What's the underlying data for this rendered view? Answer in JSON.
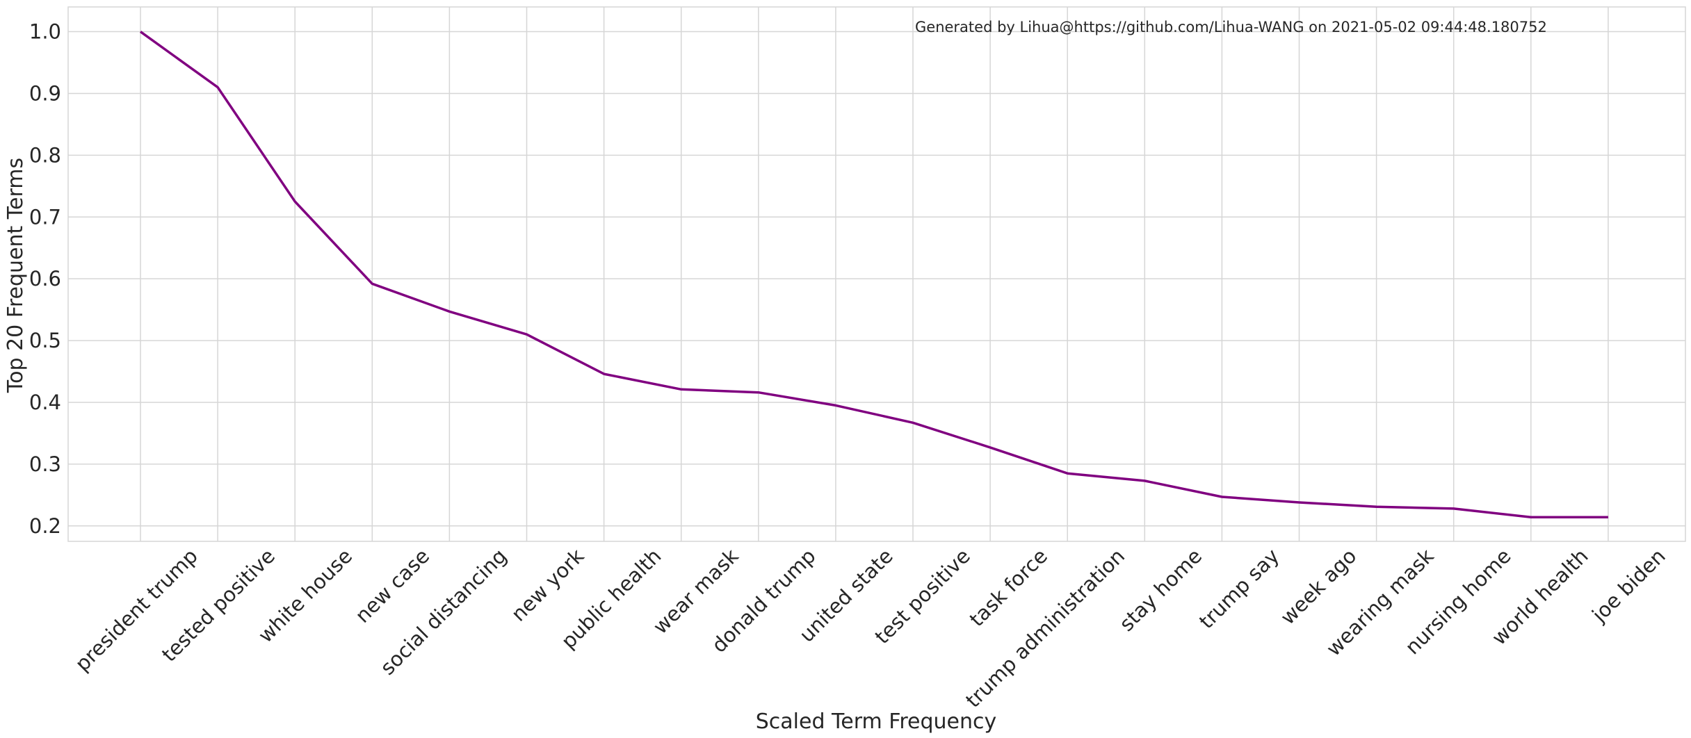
{
  "chart_data": {
    "type": "line",
    "title": "",
    "xlabel": "Scaled Term Frequency",
    "ylabel": "Top 20 Frequent Terms",
    "annotation": "Generated by Lihua@https://github.com/Lihua-WANG on 2021-05-02 09:44:48.180752",
    "categories": [
      "president trump",
      "tested positive",
      "white house",
      "new case",
      "social distancing",
      "new york",
      "public health",
      "wear mask",
      "donald trump",
      "united state",
      "test positive",
      "task force",
      "trump administration",
      "stay home",
      "trump say",
      "week ago",
      "wearing mask",
      "nursing home",
      "world health",
      "joe biden"
    ],
    "series": [
      {
        "color": "#800080",
        "values": [
          1.0,
          0.91,
          0.725,
          0.592,
          0.547,
          0.51,
          0.446,
          0.421,
          0.416,
          0.395,
          0.367,
          0.327,
          0.285,
          0.273,
          0.247,
          0.238,
          0.231,
          0.228,
          0.214,
          0.214
        ]
      }
    ],
    "ylim": [
      0.175,
      1.04
    ],
    "yticks": [
      0.2,
      0.3,
      0.4,
      0.5,
      0.6,
      0.7,
      0.8,
      0.9,
      1.0
    ],
    "ytick_labels": [
      "0.2",
      "0.3",
      "0.4",
      "0.5",
      "0.6",
      "0.7",
      "0.8",
      "0.9",
      "1.0"
    ],
    "grid": true,
    "style": "whitegrid"
  }
}
